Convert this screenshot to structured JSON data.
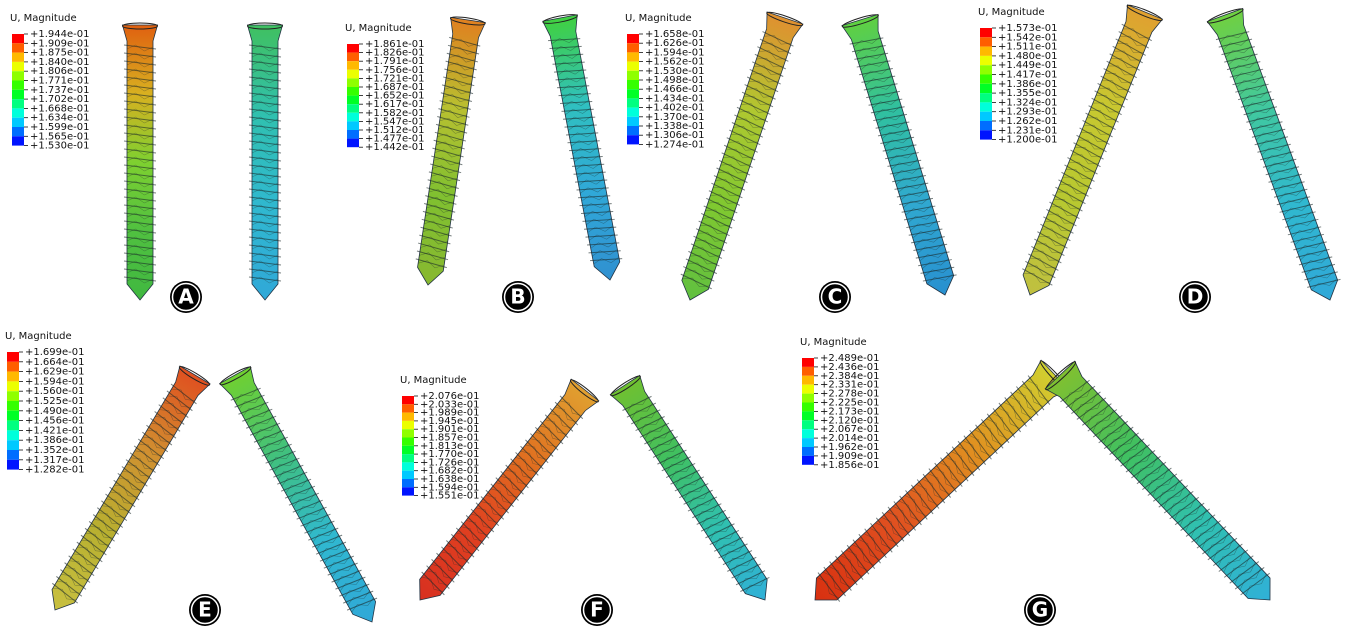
{
  "panels": [
    {
      "label": "A",
      "legend": {
        "title": "U, Magnitude",
        "values": [
          "+1.944e-01",
          "+1.909e-01",
          "+1.875e-01",
          "+1.840e-01",
          "+1.806e-01",
          "+1.771e-01",
          "+1.737e-01",
          "+1.702e-01",
          "+1.668e-01",
          "+1.634e-01",
          "+1.599e-01",
          "+1.565e-01",
          "+1.530e-01"
        ]
      }
    },
    {
      "label": "B",
      "legend": {
        "title": "U, Magnitude",
        "values": [
          "+1.861e-01",
          "+1.826e-01",
          "+1.791e-01",
          "+1.756e-01",
          "+1.721e-01",
          "+1.687e-01",
          "+1.652e-01",
          "+1.617e-01",
          "+1.582e-01",
          "+1.547e-01",
          "+1.512e-01",
          "+1.477e-01",
          "+1.442e-01"
        ]
      }
    },
    {
      "label": "C",
      "legend": {
        "title": "U, Magnitude",
        "values": [
          "+1.658e-01",
          "+1.626e-01",
          "+1.594e-01",
          "+1.562e-01",
          "+1.530e-01",
          "+1.498e-01",
          "+1.466e-01",
          "+1.434e-01",
          "+1.402e-01",
          "+1.370e-01",
          "+1.338e-01",
          "+1.306e-01",
          "+1.274e-01"
        ]
      }
    },
    {
      "label": "D",
      "legend": {
        "title": "U, Magnitude",
        "values": [
          "+1.573e-01",
          "+1.542e-01",
          "+1.511e-01",
          "+1.480e-01",
          "+1.449e-01",
          "+1.417e-01",
          "+1.386e-01",
          "+1.355e-01",
          "+1.324e-01",
          "+1.293e-01",
          "+1.262e-01",
          "+1.231e-01",
          "+1.200e-01"
        ]
      }
    },
    {
      "label": "E",
      "legend": {
        "title": "U, Magnitude",
        "values": [
          "+1.699e-01",
          "+1.664e-01",
          "+1.629e-01",
          "+1.594e-01",
          "+1.560e-01",
          "+1.525e-01",
          "+1.490e-01",
          "+1.456e-01",
          "+1.421e-01",
          "+1.386e-01",
          "+1.352e-01",
          "+1.317e-01",
          "+1.282e-01"
        ]
      }
    },
    {
      "label": "F",
      "legend": {
        "title": "U, Magnitude",
        "values": [
          "+2.076e-01",
          "+2.033e-01",
          "+1.989e-01",
          "+1.945e-01",
          "+1.901e-01",
          "+1.857e-01",
          "+1.813e-01",
          "+1.770e-01",
          "+1.726e-01",
          "+1.682e-01",
          "+1.638e-01",
          "+1.594e-01",
          "+1.551e-01"
        ]
      }
    },
    {
      "label": "G",
      "legend": {
        "title": "U, Magnitude",
        "values": [
          "+2.489e-01",
          "+2.436e-01",
          "+2.384e-01",
          "+2.331e-01",
          "+2.278e-01",
          "+2.225e-01",
          "+2.173e-01",
          "+2.120e-01",
          "+2.067e-01",
          "+2.014e-01",
          "+1.962e-01",
          "+1.909e-01",
          "+1.856e-01"
        ]
      }
    }
  ]
}
